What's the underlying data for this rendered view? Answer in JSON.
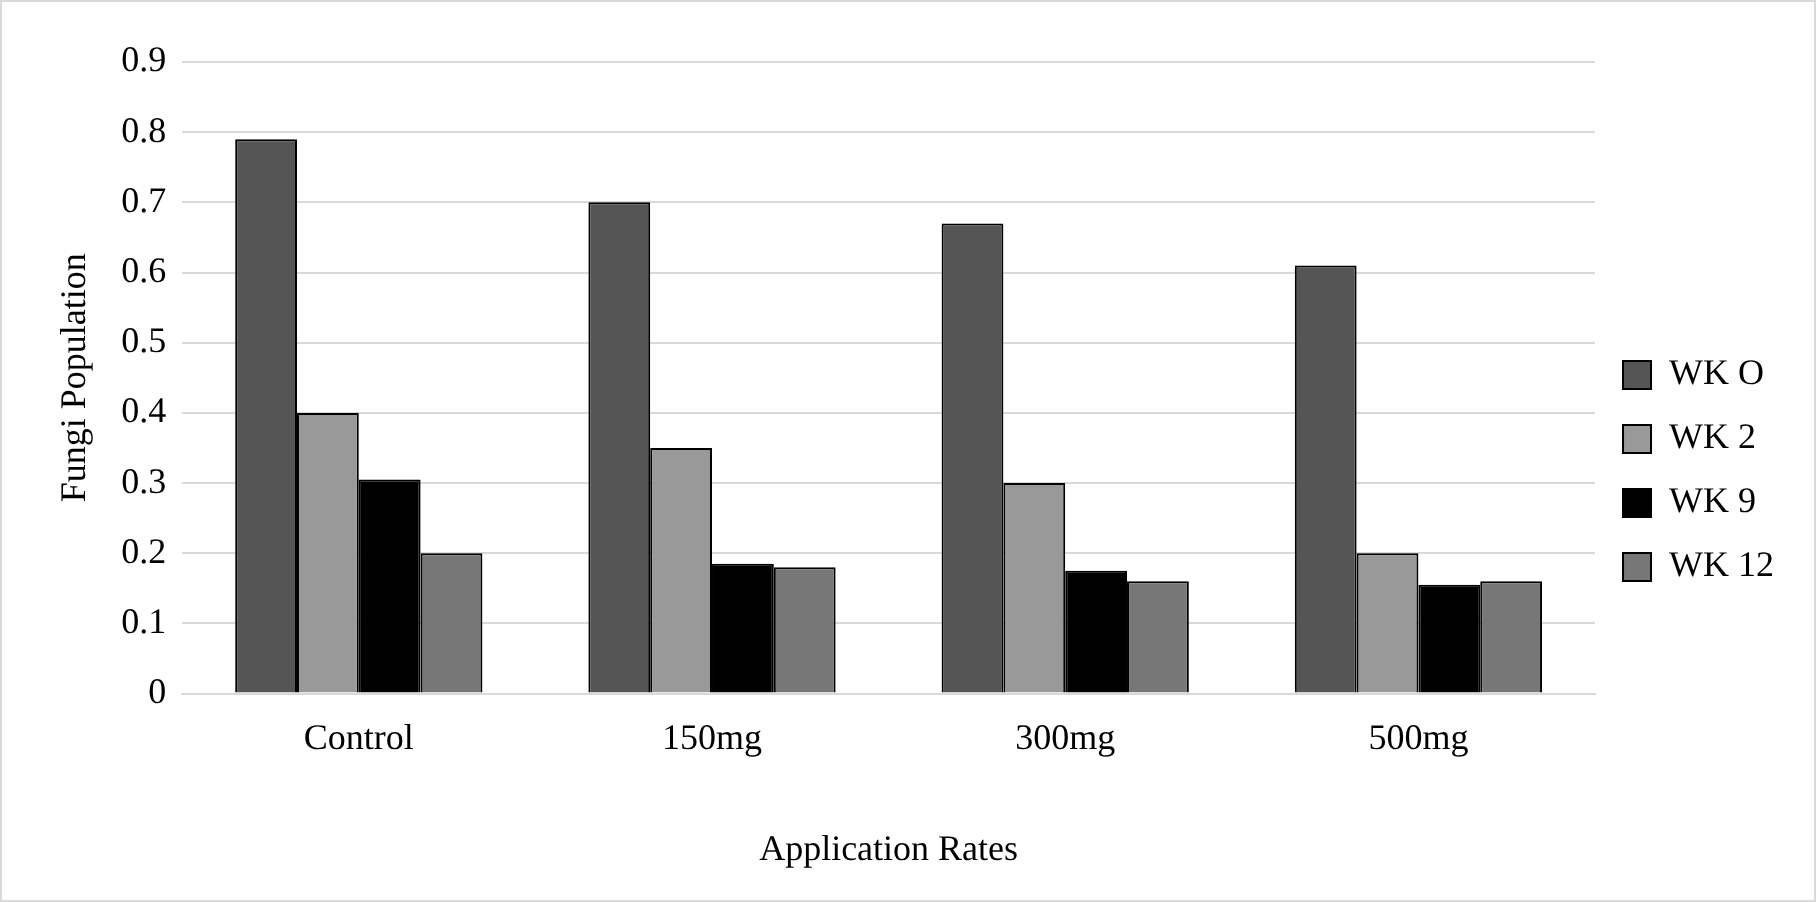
{
  "chart_data": {
    "type": "bar",
    "xlabel": "Application Rates",
    "ylabel": "Fungi Population",
    "categories": [
      "Control",
      "150mg",
      "300mg",
      "500mg"
    ],
    "series": [
      {
        "name": "WK O",
        "color": "#555555",
        "values": [
          0.79,
          0.7,
          0.67,
          0.61
        ]
      },
      {
        "name": "WK 2",
        "color": "#999999",
        "values": [
          0.4,
          0.35,
          0.3,
          0.2
        ]
      },
      {
        "name": "WK 9",
        "color": "#000000",
        "values": [
          0.305,
          0.185,
          0.175,
          0.155
        ]
      },
      {
        "name": "WK 12",
        "color": "#777777",
        "values": [
          0.2,
          0.18,
          0.16,
          0.16
        ]
      }
    ],
    "ylim": [
      0,
      0.9
    ],
    "yticks": [
      0,
      0.1,
      0.2,
      0.3,
      0.4,
      0.5,
      0.6,
      0.7,
      0.8,
      0.9
    ],
    "grid": "y",
    "legend": "right"
  }
}
